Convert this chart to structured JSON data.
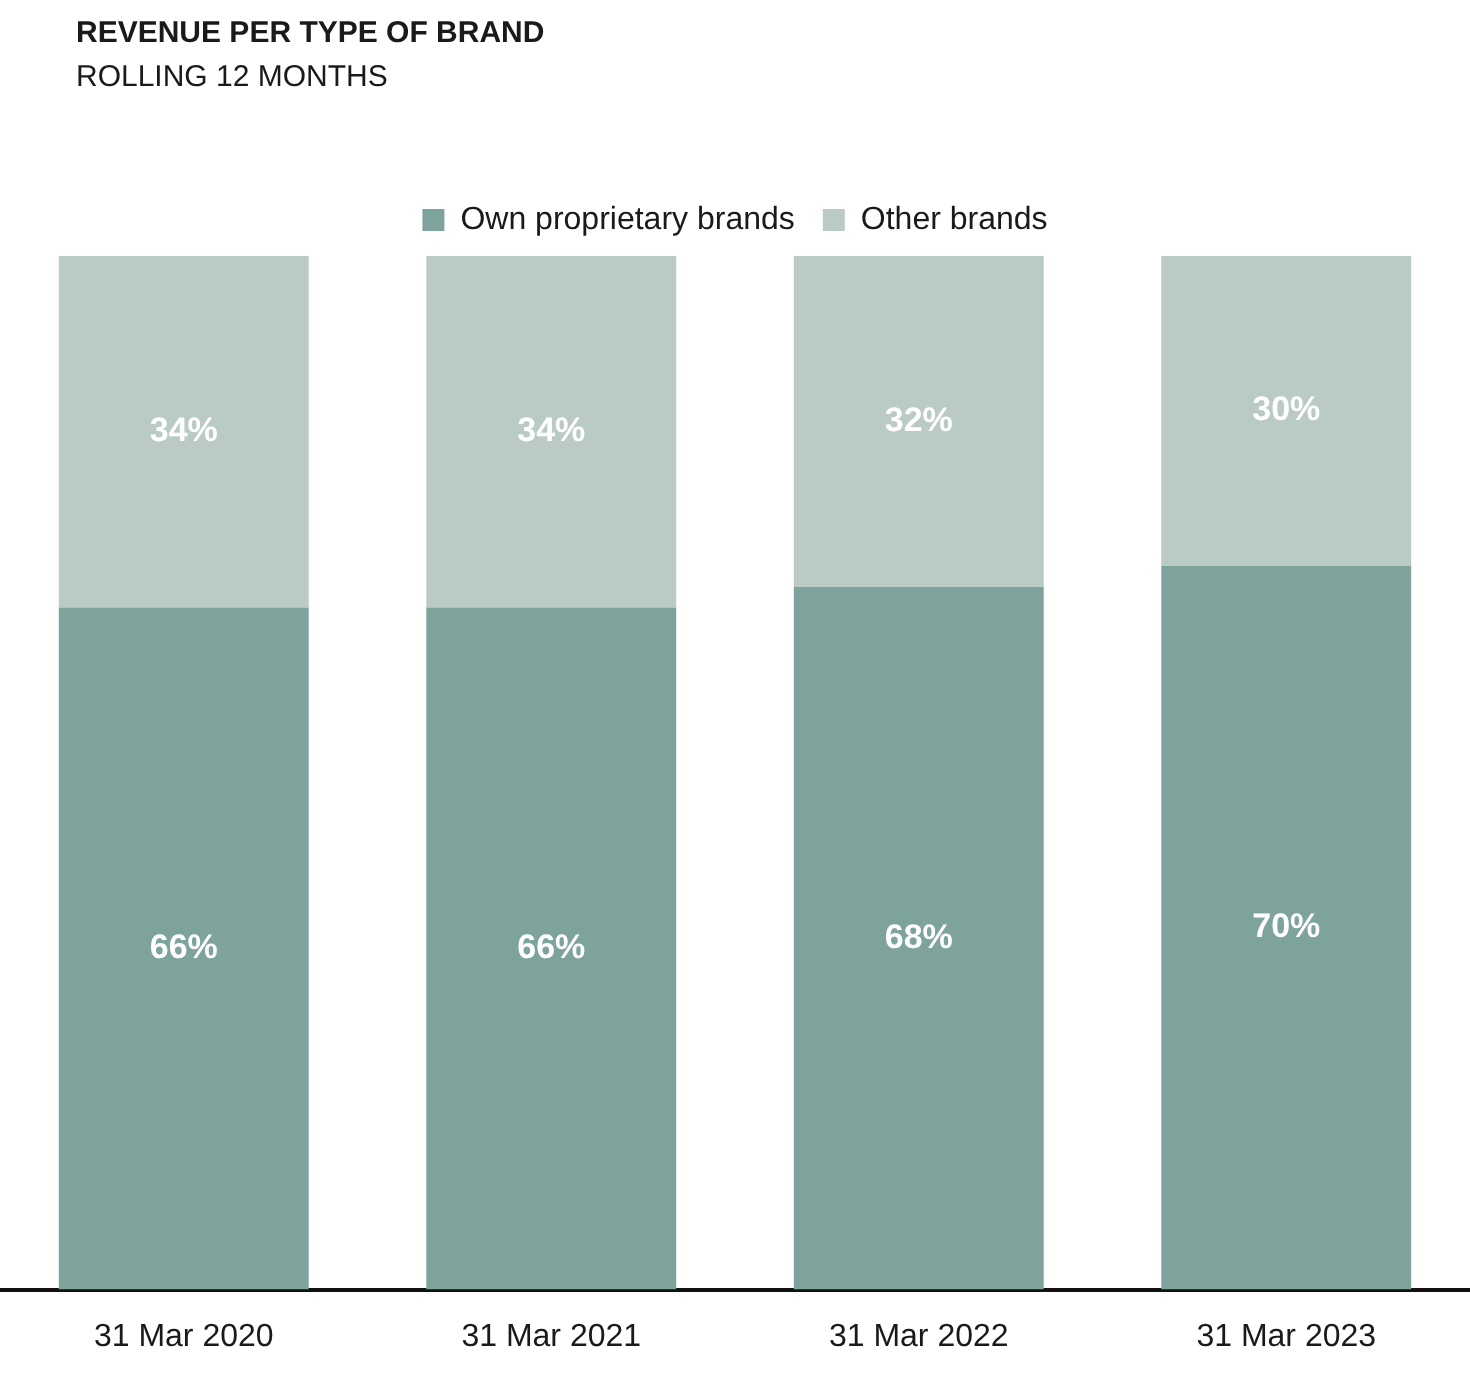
{
  "chart_data": {
    "type": "bar",
    "title": "REVENUE PER TYPE OF BRAND",
    "subtitle": "ROLLING 12 MONTHS",
    "categories": [
      "31 Mar 2020",
      "31 Mar 2021",
      "31 Mar 2022",
      "31 Mar 2023"
    ],
    "series": [
      {
        "name": "Own proprietary brands",
        "color": "#7ea39c",
        "values": [
          66,
          66,
          68,
          70
        ],
        "value_labels": [
          "66%",
          "66%",
          "68%",
          "70%"
        ]
      },
      {
        "name": "Other brands",
        "color": "#b9cbc3",
        "values": [
          34,
          34,
          32,
          30
        ],
        "value_labels": [
          "34%",
          "34%",
          "32%",
          "30%"
        ]
      }
    ],
    "stacked": true,
    "tick_labels": "x",
    "legend": "top",
    "grid": false
  }
}
